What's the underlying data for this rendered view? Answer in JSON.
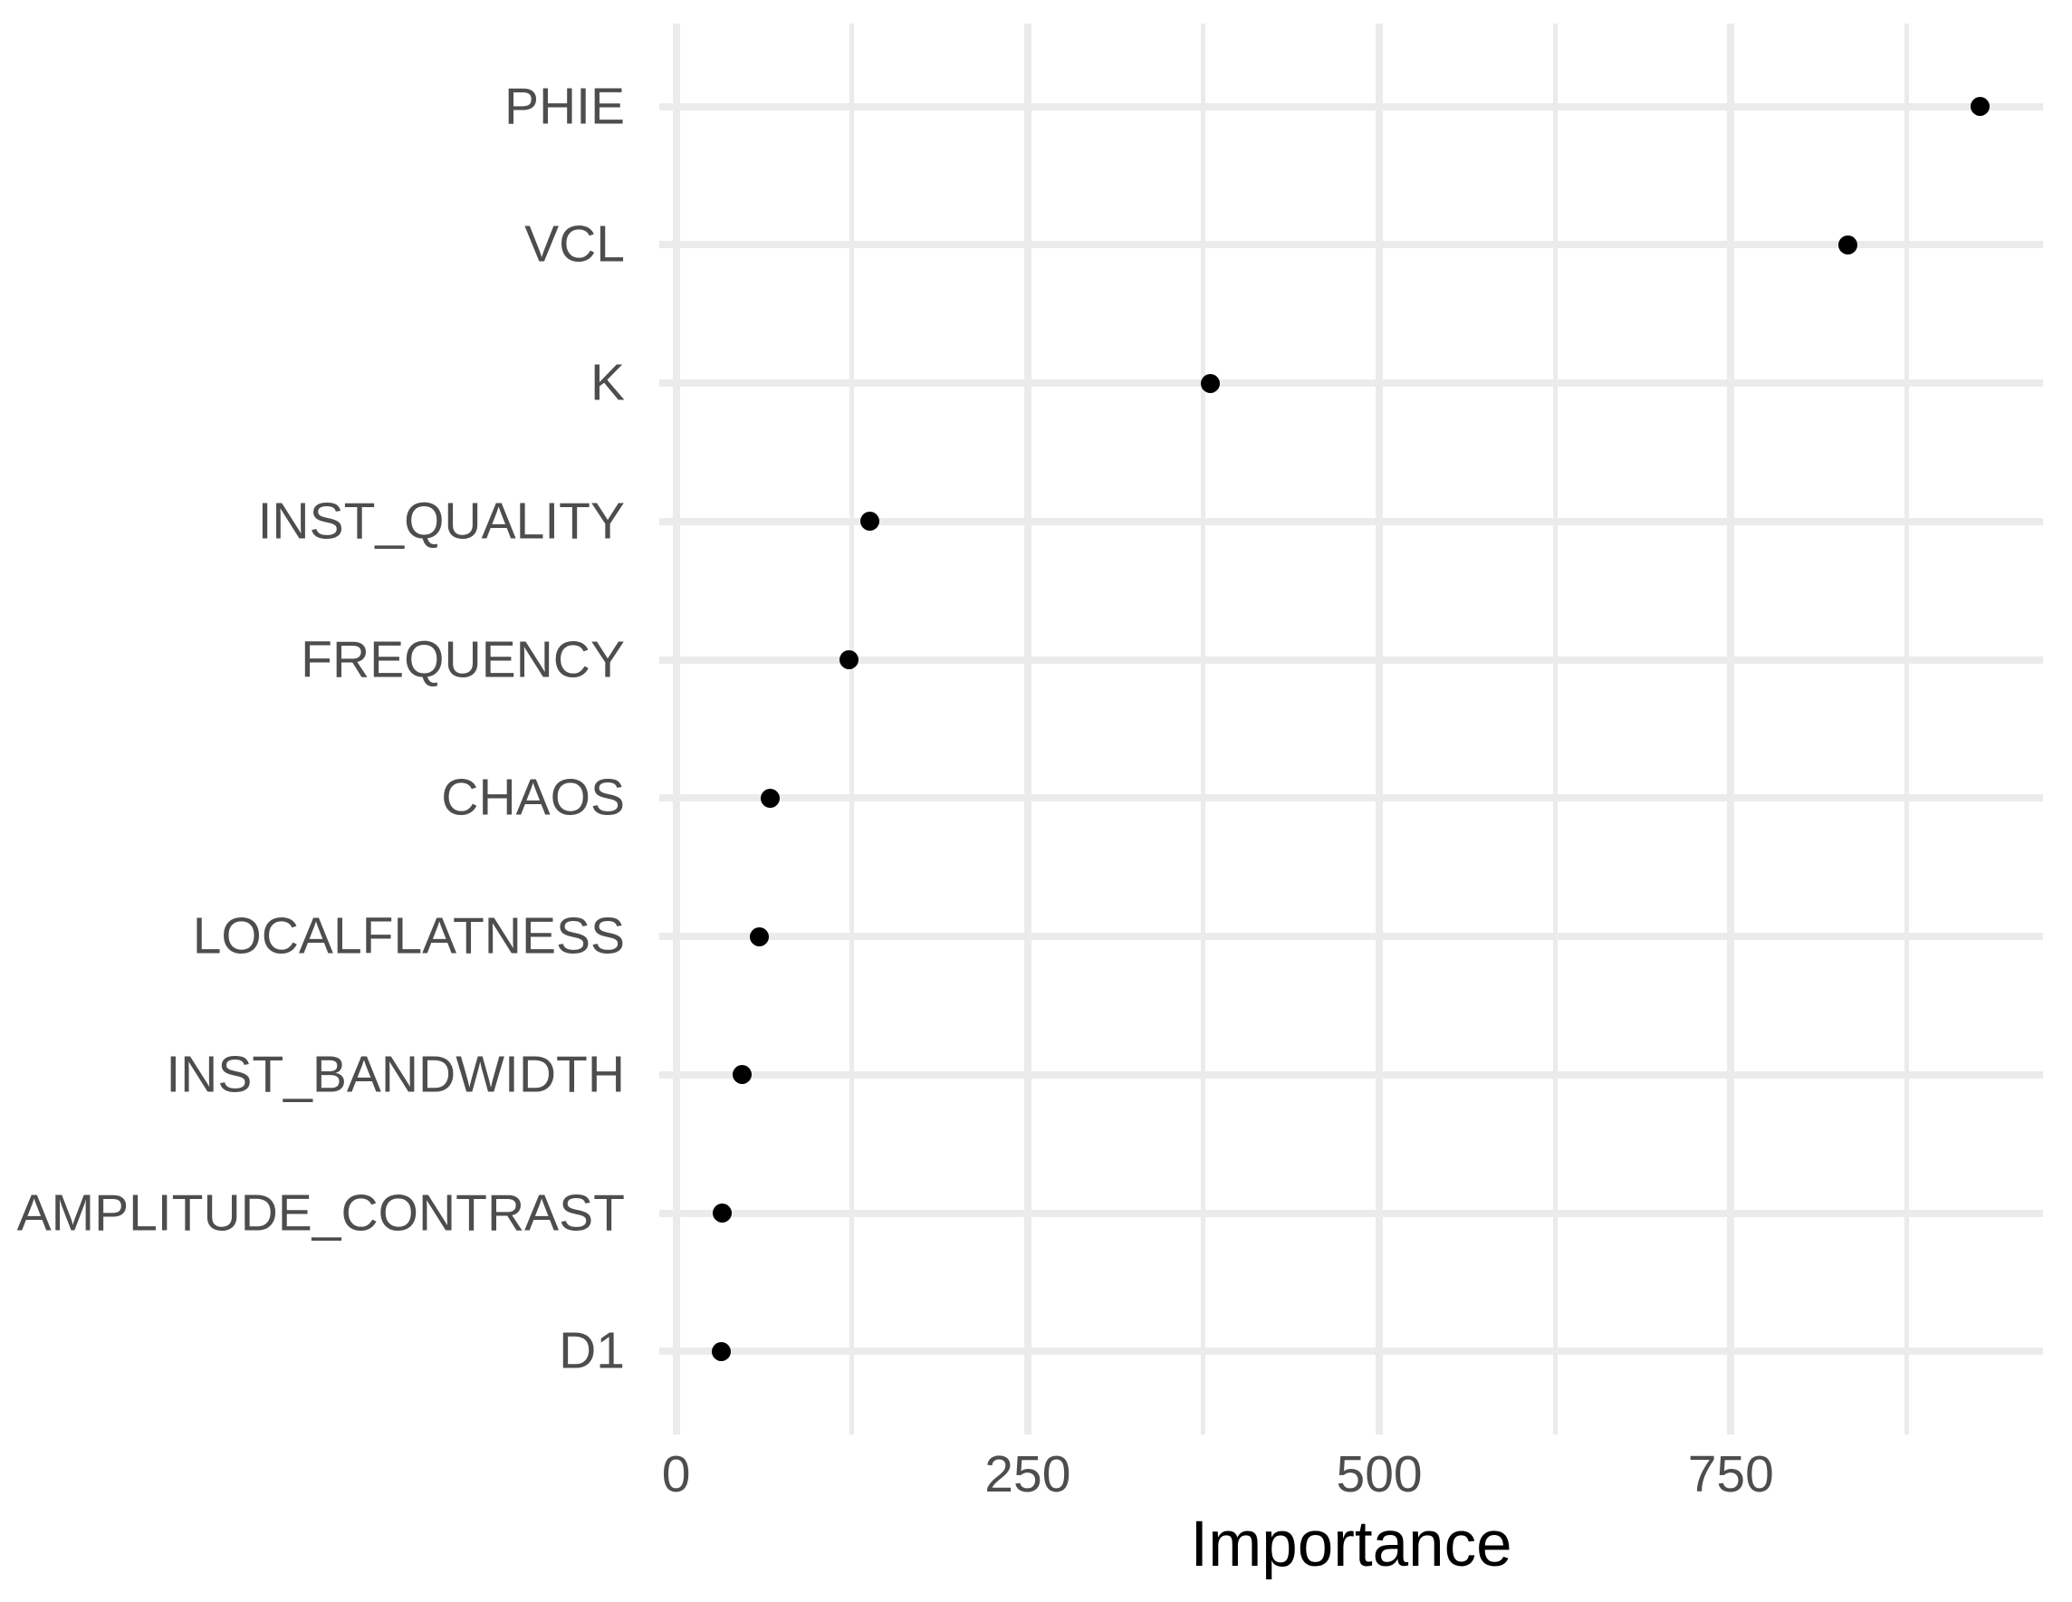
{
  "chart_data": {
    "type": "scatter",
    "subtype": "cleveland-dot-plot",
    "orientation": "horizontal",
    "title": "",
    "xlabel": "Importance",
    "ylabel": "",
    "categories": [
      "PHIE",
      "VCL",
      "K",
      "INST_QUALITY",
      "FREQUENCY",
      "CHAOS",
      "LOCALFLATNESS",
      "INST_BANDWIDTH",
      "AMPLITUDE_CONTRAST",
      "D1"
    ],
    "values": [
      927,
      833,
      380,
      138,
      123,
      67,
      59,
      47,
      33,
      32
    ],
    "xlim": [
      -12,
      972
    ],
    "x_major_ticks": [
      0,
      250,
      500,
      750
    ],
    "x_tick_labels": [
      "0",
      "250",
      "500",
      "750"
    ],
    "x_minor_ticks": [
      125,
      375,
      625,
      875
    ],
    "grid": "on",
    "legend_position": "none",
    "colors": {
      "point": "#000000",
      "grid_major": "#ebebeb",
      "grid_minor": "#ebebeb",
      "tick_label": "#4d4d4d",
      "axis_title": "#000000",
      "background": "#ffffff"
    }
  }
}
